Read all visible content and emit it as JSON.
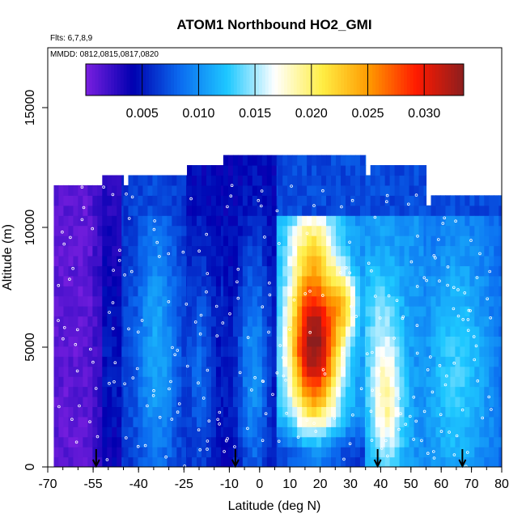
{
  "chart_data": {
    "type": "heatmap",
    "title": "ATOM1 Northbound HO2_GMI",
    "subtitle_flights": "Flts: 6,7,8,9",
    "subtitle_dates": "MMDD: 0812,0815,0817,0820",
    "xlabel": "Latitude (deg N)",
    "ylabel": "Altitude (m)",
    "xlim": [
      -70,
      80
    ],
    "ylim": [
      0,
      17500
    ],
    "x_ticks": [
      -70,
      -55,
      -40,
      -25,
      -10,
      0,
      10,
      20,
      30,
      40,
      50,
      60,
      70,
      80
    ],
    "x_tick_labels": [
      "-70",
      "-55",
      "-40",
      "-25",
      "-10",
      "0",
      "10",
      "20",
      "30",
      "40",
      "50",
      "60",
      "70",
      "80"
    ],
    "y_ticks": [
      0,
      5000,
      10000,
      15000
    ],
    "y_tick_labels": [
      "0",
      "5000",
      "10000",
      "15000"
    ],
    "colorbar": {
      "min": 0.0,
      "max": 0.0335,
      "ticks": [
        0.005,
        0.01,
        0.015,
        0.02,
        0.025,
        0.03
      ],
      "tick_labels": [
        "0.005",
        "0.010",
        "0.015",
        "0.020",
        "0.025",
        "0.030"
      ],
      "colors": [
        "#7a1fe0",
        "#0000b0",
        "#0b6cf0",
        "#1ec8ff",
        "#ffffff",
        "#ffee44",
        "#ff9900",
        "#ff1a00",
        "#8c1e1e"
      ]
    },
    "flight_markers_lat": [
      -54,
      -8,
      39,
      67
    ],
    "profiles": [
      {
        "lat_range": [
          -68,
          -52
        ],
        "alt_top": 11500,
        "pattern": "edge_purple"
      },
      {
        "lat_range": [
          -52,
          -45
        ],
        "alt_top": 12000,
        "pattern": "dark_blue"
      },
      {
        "lat_range": [
          -45,
          -24
        ],
        "alt_top": 12000,
        "pattern": "blue_band"
      },
      {
        "lat_range": [
          -24,
          -12
        ],
        "alt_top": 12200,
        "pattern": "dark_blue"
      },
      {
        "lat_range": [
          -12,
          6
        ],
        "alt_top": 12800,
        "pattern": "mixed_blue"
      },
      {
        "lat_range": [
          6,
          35
        ],
        "alt_top": 12800,
        "pattern": "tropical_max"
      },
      {
        "lat_range": [
          35,
          55
        ],
        "alt_top": 12500,
        "pattern": "midlat_blue"
      },
      {
        "lat_range": [
          55,
          80
        ],
        "alt_top": 11200,
        "pattern": "north_blue"
      }
    ]
  }
}
